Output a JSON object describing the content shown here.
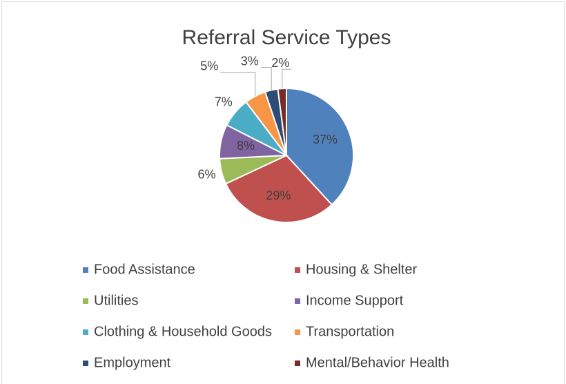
{
  "chart_data": {
    "type": "pie",
    "title": "Referral Service Types",
    "categories": [
      "Food Assistance",
      "Housing & Shelter",
      "Utilities",
      "Income Support",
      "Clothing & Household Goods",
      "Transportation",
      "Employment",
      "Mental/Behavior Health"
    ],
    "values": [
      37,
      29,
      6,
      8,
      7,
      5,
      3,
      2
    ],
    "value_labels": [
      "37%",
      "29%",
      "6%",
      "8%",
      "7%",
      "5%",
      "3%",
      "2%"
    ],
    "colors": [
      "#4f81bd",
      "#c0504d",
      "#9bbb59",
      "#8064a2",
      "#4bacc6",
      "#f79646",
      "#2c4d75",
      "#772c2a"
    ],
    "legend": "bottom"
  }
}
